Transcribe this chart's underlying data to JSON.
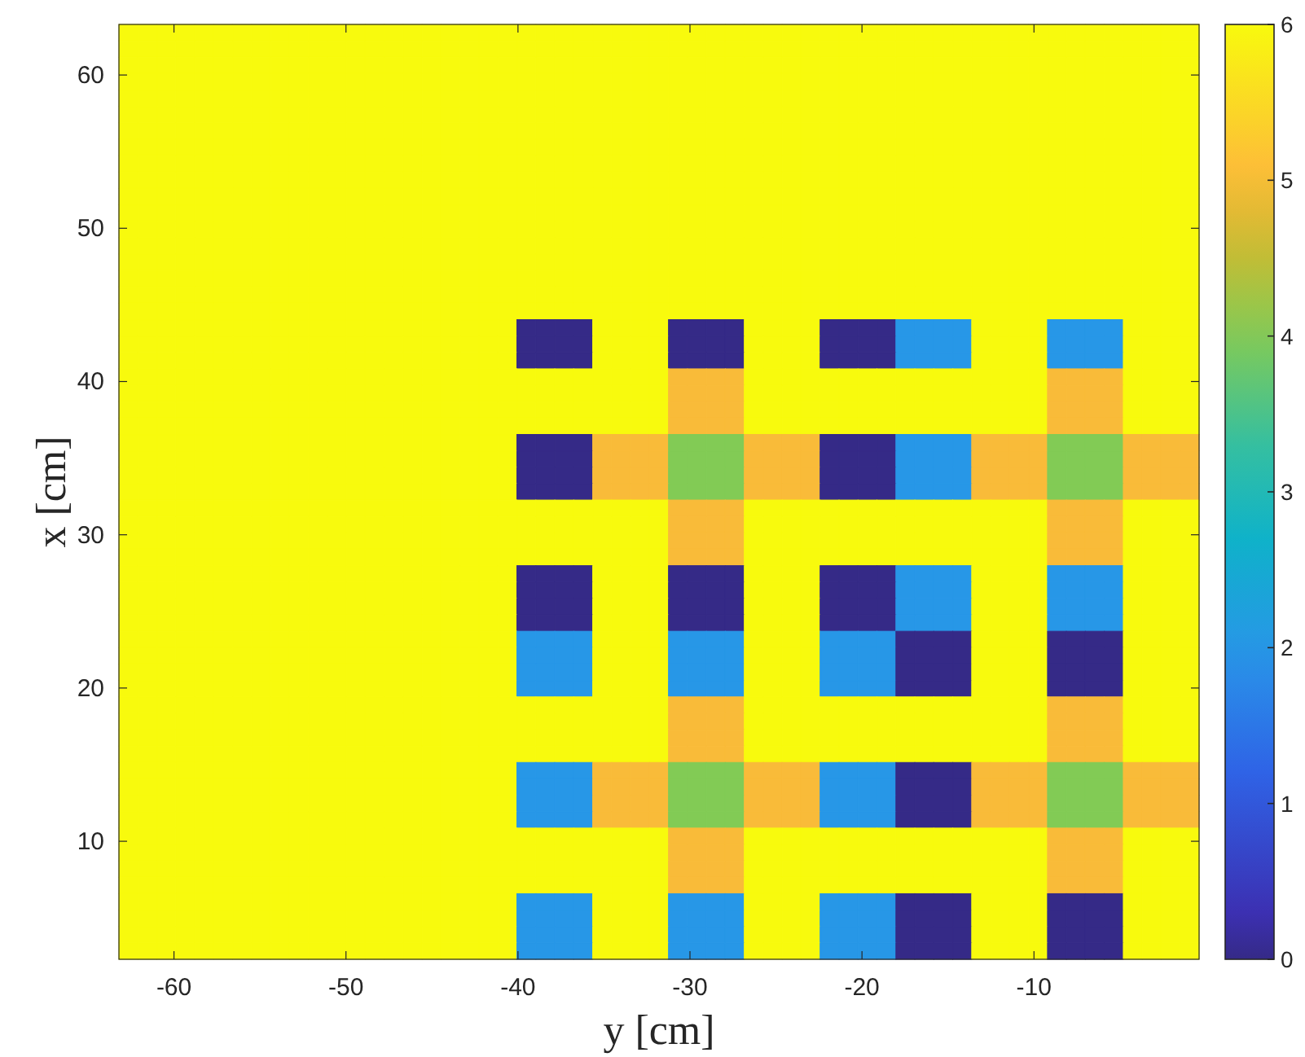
{
  "chart_data": {
    "type": "heatmap",
    "xlabel": "y [cm]",
    "ylabel": "x [cm]",
    "xlim": [
      -63.2,
      -0.4
    ],
    "ylim": [
      2.3,
      63.3
    ],
    "xticks": [
      -60,
      -50,
      -40,
      -30,
      -20,
      -10
    ],
    "yticks": [
      10,
      20,
      30,
      40,
      50,
      60
    ],
    "clim": [
      0,
      6
    ],
    "cticks": [
      0,
      1,
      2,
      3,
      4,
      5,
      6
    ],
    "cells": [
      [
        6,
        6,
        6,
        6,
        6,
        6,
        6,
        6,
        6,
        6,
        6,
        6,
        6,
        6,
        6,
        6,
        6,
        6,
        6,
        6,
        6,
        6,
        6,
        6,
        6,
        6,
        6,
        6,
        6,
        6,
        6,
        6,
        6,
        6,
        6,
        6,
        6,
        6,
        6,
        6,
        6,
        6,
        6,
        6,
        6,
        6,
        6,
        6,
        6,
        6,
        6,
        6,
        6,
        6,
        6,
        6,
        6
      ],
      [
        6,
        6,
        6,
        6,
        6,
        6,
        6,
        6,
        6,
        6,
        6,
        6,
        6,
        6,
        6,
        6,
        6,
        6,
        6,
        6,
        6,
        6,
        6,
        6,
        6,
        6,
        6,
        6,
        6,
        6,
        6,
        6,
        6,
        6,
        6,
        6,
        6,
        6,
        6,
        6,
        6,
        6,
        6,
        6,
        6,
        6,
        6,
        6,
        6,
        6,
        6,
        6,
        6,
        6,
        6,
        6,
        6
      ],
      [
        6,
        6,
        6,
        6,
        6,
        6,
        6,
        6,
        6,
        6,
        6,
        6,
        6,
        6,
        6,
        6,
        6,
        6,
        6,
        6,
        6,
        6,
        6,
        6,
        6,
        6,
        6,
        6,
        6,
        6,
        6,
        6,
        6,
        6,
        6,
        6,
        6,
        6,
        6,
        6,
        6,
        6,
        6,
        6,
        6,
        6,
        6,
        6,
        6,
        6,
        6,
        6,
        6,
        6,
        6,
        6,
        6
      ],
      [
        6,
        6,
        6,
        6,
        6,
        6,
        6,
        6,
        6,
        6,
        6,
        6,
        6,
        6,
        6,
        6,
        6,
        6,
        6,
        6,
        6,
        6,
        6,
        6,
        6,
        6,
        6,
        6,
        6,
        6,
        6,
        6,
        6,
        6,
        6,
        6,
        6,
        6,
        6,
        6,
        6,
        6,
        6,
        6,
        6,
        6,
        6,
        6,
        6,
        6,
        6,
        6,
        6,
        6,
        6,
        6,
        6
      ],
      [
        6,
        6,
        6,
        6,
        6,
        6,
        6,
        6,
        6,
        6,
        6,
        6,
        6,
        6,
        6,
        6,
        6,
        6,
        6,
        6,
        6,
        6,
        6,
        6,
        6,
        6,
        6,
        6,
        6,
        6,
        6,
        6,
        6,
        6,
        6,
        6,
        6,
        6,
        6,
        6,
        6,
        6,
        6,
        6,
        6,
        6,
        6,
        6,
        6,
        6,
        6,
        6,
        6,
        6,
        6,
        6,
        6
      ],
      [
        6,
        6,
        6,
        6,
        6,
        6,
        6,
        6,
        6,
        6,
        6,
        6,
        6,
        6,
        6,
        6,
        6,
        6,
        6,
        6,
        6,
        6,
        6,
        6,
        6,
        6,
        6,
        6,
        6,
        6,
        6,
        6,
        6,
        6,
        6,
        6,
        6,
        6,
        6,
        6,
        6,
        6,
        6,
        6,
        6,
        6,
        6,
        6,
        6,
        6,
        6,
        6,
        6,
        6,
        6,
        6,
        6
      ],
      [
        6,
        6,
        6,
        6,
        6,
        6,
        6,
        6,
        6,
        6,
        6,
        6,
        6,
        6,
        6,
        6,
        6,
        6,
        6,
        6,
        6,
        6,
        6,
        6,
        6,
        6,
        6,
        6,
        6,
        6,
        6,
        6,
        6,
        6,
        6,
        6,
        6,
        6,
        6,
        6,
        6,
        6,
        6,
        6,
        6,
        6,
        6,
        6,
        6,
        6,
        6,
        6,
        6,
        6,
        6,
        6,
        6
      ],
      [
        6,
        6,
        6,
        6,
        6,
        6,
        6,
        6,
        6,
        6,
        6,
        6,
        6,
        6,
        6,
        6,
        6,
        6,
        6,
        6,
        6,
        6,
        6,
        6,
        6,
        6,
        6,
        6,
        6,
        6,
        6,
        6,
        6,
        6,
        6,
        6,
        6,
        6,
        6,
        6,
        6,
        6,
        6,
        6,
        6,
        6,
        6,
        6,
        6,
        6,
        6,
        6,
        6,
        6,
        6,
        6,
        6
      ],
      [
        6,
        6,
        6,
        6,
        6,
        6,
        6,
        6,
        6,
        6,
        6,
        6,
        6,
        6,
        6,
        6,
        6,
        6,
        6,
        6,
        6,
        6,
        6,
        6,
        6,
        6,
        6,
        6,
        6,
        6,
        6,
        6,
        6,
        6,
        6,
        6,
        6,
        6,
        6,
        6,
        6,
        6,
        6,
        6,
        6,
        6,
        6,
        6,
        6,
        6,
        6,
        6,
        6,
        6,
        6,
        6,
        6
      ],
      [
        6,
        6,
        6,
        6,
        6,
        6,
        6,
        6,
        6,
        6,
        6,
        6,
        6,
        6,
        6,
        6,
        6,
        6,
        6,
        6,
        6,
        6,
        6,
        6,
        6,
        6,
        6,
        6,
        6,
        6,
        6,
        6,
        6,
        6,
        6,
        6,
        6,
        6,
        6,
        6,
        6,
        6,
        6,
        6,
        6,
        6,
        6,
        6,
        6,
        6,
        6,
        6,
        6,
        6,
        6,
        6,
        6
      ],
      [
        6,
        6,
        6,
        6,
        6,
        6,
        6,
        6,
        6,
        6,
        6,
        6,
        6,
        6,
        6,
        6,
        6,
        6,
        6,
        6,
        6,
        6,
        6,
        6,
        6,
        6,
        6,
        6,
        6,
        6,
        6,
        6,
        6,
        6,
        6,
        6,
        6,
        6,
        6,
        6,
        6,
        6,
        6,
        6,
        6,
        6,
        6,
        6,
        6,
        6,
        6,
        6,
        6,
        6,
        6,
        6,
        6
      ],
      [
        6,
        6,
        6,
        6,
        6,
        6,
        6,
        6,
        6,
        6,
        6,
        6,
        6,
        6,
        6,
        6,
        6,
        6,
        6,
        6,
        6,
        6,
        6,
        6,
        6,
        6,
        6,
        6,
        6,
        6,
        6,
        6,
        6,
        6,
        6,
        6,
        6,
        6,
        6,
        6,
        6,
        6,
        6,
        6,
        6,
        6,
        6,
        6,
        6,
        6,
        6,
        6,
        6,
        6,
        6,
        6,
        6
      ],
      [
        6,
        6,
        6,
        6,
        6,
        6,
        6,
        6,
        6,
        6,
        6,
        6,
        6,
        6,
        6,
        6,
        6,
        6,
        6,
        6,
        6,
        6,
        6,
        6,
        6,
        6,
        6,
        6,
        6,
        6,
        6,
        6,
        6,
        6,
        6,
        6,
        6,
        6,
        6,
        6,
        6,
        6,
        6,
        6,
        6,
        6,
        6,
        6,
        6,
        6,
        6,
        6,
        6,
        6,
        6,
        6,
        6
      ],
      [
        6,
        6,
        6,
        6,
        6,
        6,
        6,
        6,
        6,
        6,
        6,
        6,
        6,
        6,
        6,
        6,
        6,
        6,
        6,
        6,
        6,
        6,
        6,
        6,
        6,
        6,
        6,
        6,
        6,
        6,
        6,
        6,
        6,
        6,
        6,
        6,
        6,
        6,
        6,
        6,
        6,
        6,
        6,
        6,
        6,
        6,
        6,
        6,
        6,
        6,
        6,
        6,
        6,
        6,
        6,
        6,
        6
      ],
      [
        6,
        6,
        6,
        6,
        6,
        6,
        6,
        6,
        6,
        6,
        6,
        6,
        6,
        6,
        6,
        6,
        6,
        6,
        6,
        6,
        6,
        6,
        6,
        6,
        6,
        6,
        6,
        6,
        6,
        6,
        6,
        6,
        6,
        6,
        6,
        6,
        6,
        6,
        6,
        6,
        6,
        6,
        6,
        6,
        6,
        6,
        6,
        6,
        6,
        6,
        6,
        6,
        6,
        6,
        6,
        6,
        6
      ],
      [
        6,
        6,
        6,
        6,
        6,
        6,
        6,
        6,
        6,
        6,
        6,
        6,
        6,
        6,
        6,
        6,
        6,
        6,
        6,
        6,
        6,
        6,
        6,
        6,
        6,
        6,
        6,
        6,
        6,
        6,
        6,
        6,
        6,
        6,
        6,
        6,
        6,
        6,
        6,
        6,
        6,
        6,
        6,
        6,
        6,
        6,
        6,
        6,
        6,
        6,
        6,
        6,
        6,
        6,
        6,
        6,
        6
      ],
      [
        6,
        6,
        6,
        6,
        6,
        6,
        6,
        6,
        6,
        6,
        6,
        6,
        6,
        6,
        6,
        6,
        6,
        6,
        6,
        6,
        6,
        6,
        6,
        6,
        6,
        6,
        6,
        6,
        6,
        6,
        6,
        6,
        6,
        6,
        6,
        6,
        6,
        6,
        6,
        6,
        6,
        6,
        6,
        6,
        6,
        6,
        6,
        6,
        6,
        6,
        6,
        6,
        6,
        6,
        6,
        6,
        6
      ],
      [
        6,
        6,
        6,
        6,
        6,
        6,
        6,
        6,
        6,
        6,
        6,
        6,
        6,
        6,
        6,
        6,
        6,
        6,
        6,
        6,
        6,
        6,
        6,
        6,
        6,
        6,
        6,
        6,
        6,
        6,
        6,
        6,
        6,
        6,
        6,
        6,
        6,
        6,
        6,
        6,
        6,
        6,
        6,
        6,
        6,
        6,
        6,
        6,
        6,
        6,
        6,
        6,
        6,
        6,
        6,
        6,
        6
      ],
      [
        6,
        6,
        6,
        6,
        6,
        6,
        6,
        6,
        6,
        6,
        6,
        6,
        6,
        6,
        6,
        6,
        6,
        6,
        6,
        6,
        6,
        0,
        0,
        0,
        0,
        6,
        6,
        6,
        6,
        0,
        0,
        0,
        0,
        6,
        6,
        6,
        6,
        0,
        0,
        0,
        0,
        2,
        2,
        2,
        2,
        6,
        6,
        6,
        6,
        2,
        2,
        2,
        2,
        6,
        6,
        6,
        6
      ],
      [
        6,
        6,
        6,
        6,
        6,
        6,
        6,
        6,
        6,
        6,
        6,
        6,
        6,
        6,
        6,
        6,
        6,
        6,
        6,
        6,
        6,
        0,
        0,
        0,
        0,
        6,
        6,
        6,
        6,
        0,
        0,
        0,
        0,
        6,
        6,
        6,
        6,
        0,
        0,
        0,
        0,
        2,
        2,
        2,
        2,
        6,
        6,
        6,
        6,
        2,
        2,
        2,
        2,
        6,
        6,
        6,
        6
      ],
      [
        6,
        6,
        6,
        6,
        6,
        6,
        6,
        6,
        6,
        6,
        6,
        6,
        6,
        6,
        6,
        6,
        6,
        6,
        6,
        6,
        6,
        0,
        0,
        0,
        0,
        6,
        6,
        6,
        6,
        0,
        0,
        0,
        0,
        6,
        6,
        6,
        6,
        0,
        0,
        0,
        0,
        2,
        2,
        2,
        2,
        6,
        6,
        6,
        6,
        2,
        2,
        2,
        2,
        6,
        6,
        6,
        6
      ],
      [
        6,
        6,
        6,
        6,
        6,
        6,
        6,
        6,
        6,
        6,
        6,
        6,
        6,
        6,
        6,
        6,
        6,
        6,
        6,
        6,
        6,
        6,
        6,
        6,
        6,
        6,
        6,
        6,
        6,
        5,
        5,
        5,
        5,
        6,
        6,
        6,
        6,
        6,
        6,
        6,
        6,
        6,
        6,
        6,
        6,
        6,
        6,
        6,
        6,
        5,
        5,
        5,
        5,
        6,
        6,
        6,
        6
      ],
      [
        6,
        6,
        6,
        6,
        6,
        6,
        6,
        6,
        6,
        6,
        6,
        6,
        6,
        6,
        6,
        6,
        6,
        6,
        6,
        6,
        6,
        6,
        6,
        6,
        6,
        6,
        6,
        6,
        6,
        5,
        5,
        5,
        5,
        6,
        6,
        6,
        6,
        6,
        6,
        6,
        6,
        6,
        6,
        6,
        6,
        6,
        6,
        6,
        6,
        5,
        5,
        5,
        5,
        6,
        6,
        6,
        6
      ],
      [
        6,
        6,
        6,
        6,
        6,
        6,
        6,
        6,
        6,
        6,
        6,
        6,
        6,
        6,
        6,
        6,
        6,
        6,
        6,
        6,
        6,
        6,
        6,
        6,
        6,
        6,
        6,
        6,
        6,
        5,
        5,
        5,
        5,
        6,
        6,
        6,
        6,
        6,
        6,
        6,
        6,
        6,
        6,
        6,
        6,
        6,
        6,
        6,
        6,
        5,
        5,
        5,
        5,
        6,
        6,
        6,
        6
      ],
      [
        6,
        6,
        6,
        6,
        6,
        6,
        6,
        6,
        6,
        6,
        6,
        6,
        6,
        6,
        6,
        6,
        6,
        6,
        6,
        6,
        6,
        6,
        6,
        6,
        6,
        6,
        6,
        6,
        6,
        5,
        5,
        5,
        5,
        6,
        6,
        6,
        6,
        6,
        6,
        6,
        6,
        6,
        6,
        6,
        6,
        6,
        6,
        6,
        6,
        5,
        5,
        5,
        5,
        6,
        6,
        6,
        6
      ],
      [
        6,
        6,
        6,
        6,
        6,
        6,
        6,
        6,
        6,
        6,
        6,
        6,
        6,
        6,
        6,
        6,
        6,
        6,
        6,
        6,
        6,
        0,
        0,
        0,
        0,
        5,
        5,
        5,
        5,
        4,
        4,
        4,
        4,
        5,
        5,
        5,
        5,
        0,
        0,
        0,
        0,
        2,
        2,
        2,
        2,
        5,
        5,
        5,
        5,
        4,
        4,
        4,
        4,
        5,
        5,
        5,
        5
      ],
      [
        6,
        6,
        6,
        6,
        6,
        6,
        6,
        6,
        6,
        6,
        6,
        6,
        6,
        6,
        6,
        6,
        6,
        6,
        6,
        6,
        6,
        0,
        0,
        0,
        0,
        5,
        5,
        5,
        5,
        4,
        4,
        4,
        4,
        5,
        5,
        5,
        5,
        0,
        0,
        0,
        0,
        2,
        2,
        2,
        2,
        5,
        5,
        5,
        5,
        4,
        4,
        4,
        4,
        5,
        5,
        5,
        5
      ],
      [
        6,
        6,
        6,
        6,
        6,
        6,
        6,
        6,
        6,
        6,
        6,
        6,
        6,
        6,
        6,
        6,
        6,
        6,
        6,
        6,
        6,
        0,
        0,
        0,
        0,
        5,
        5,
        5,
        5,
        4,
        4,
        4,
        4,
        5,
        5,
        5,
        5,
        0,
        0,
        0,
        0,
        2,
        2,
        2,
        2,
        5,
        5,
        5,
        5,
        4,
        4,
        4,
        4,
        5,
        5,
        5,
        5
      ],
      [
        6,
        6,
        6,
        6,
        6,
        6,
        6,
        6,
        6,
        6,
        6,
        6,
        6,
        6,
        6,
        6,
        6,
        6,
        6,
        6,
        6,
        0,
        0,
        0,
        0,
        5,
        5,
        5,
        5,
        4,
        4,
        4,
        4,
        5,
        5,
        5,
        5,
        0,
        0,
        0,
        0,
        2,
        2,
        2,
        2,
        5,
        5,
        5,
        5,
        4,
        4,
        4,
        4,
        5,
        5,
        5,
        5
      ],
      [
        6,
        6,
        6,
        6,
        6,
        6,
        6,
        6,
        6,
        6,
        6,
        6,
        6,
        6,
        6,
        6,
        6,
        6,
        6,
        6,
        6,
        6,
        6,
        6,
        6,
        6,
        6,
        6,
        6,
        5,
        5,
        5,
        5,
        6,
        6,
        6,
        6,
        6,
        6,
        6,
        6,
        6,
        6,
        6,
        6,
        6,
        6,
        6,
        6,
        5,
        5,
        5,
        5,
        6,
        6,
        6,
        6
      ],
      [
        6,
        6,
        6,
        6,
        6,
        6,
        6,
        6,
        6,
        6,
        6,
        6,
        6,
        6,
        6,
        6,
        6,
        6,
        6,
        6,
        6,
        6,
        6,
        6,
        6,
        6,
        6,
        6,
        6,
        5,
        5,
        5,
        5,
        6,
        6,
        6,
        6,
        6,
        6,
        6,
        6,
        6,
        6,
        6,
        6,
        6,
        6,
        6,
        6,
        5,
        5,
        5,
        5,
        6,
        6,
        6,
        6
      ],
      [
        6,
        6,
        6,
        6,
        6,
        6,
        6,
        6,
        6,
        6,
        6,
        6,
        6,
        6,
        6,
        6,
        6,
        6,
        6,
        6,
        6,
        6,
        6,
        6,
        6,
        6,
        6,
        6,
        6,
        5,
        5,
        5,
        5,
        6,
        6,
        6,
        6,
        6,
        6,
        6,
        6,
        6,
        6,
        6,
        6,
        6,
        6,
        6,
        6,
        5,
        5,
        5,
        5,
        6,
        6,
        6,
        6
      ],
      [
        6,
        6,
        6,
        6,
        6,
        6,
        6,
        6,
        6,
        6,
        6,
        6,
        6,
        6,
        6,
        6,
        6,
        6,
        6,
        6,
        6,
        6,
        6,
        6,
        6,
        6,
        6,
        6,
        6,
        5,
        5,
        5,
        5,
        6,
        6,
        6,
        6,
        6,
        6,
        6,
        6,
        6,
        6,
        6,
        6,
        6,
        6,
        6,
        6,
        5,
        5,
        5,
        5,
        6,
        6,
        6,
        6
      ],
      [
        6,
        6,
        6,
        6,
        6,
        6,
        6,
        6,
        6,
        6,
        6,
        6,
        6,
        6,
        6,
        6,
        6,
        6,
        6,
        6,
        6,
        0,
        0,
        0,
        0,
        6,
        6,
        6,
        6,
        0,
        0,
        0,
        0,
        6,
        6,
        6,
        6,
        0,
        0,
        0,
        0,
        2,
        2,
        2,
        2,
        6,
        6,
        6,
        6,
        2,
        2,
        2,
        2,
        6,
        6,
        6,
        6
      ],
      [
        6,
        6,
        6,
        6,
        6,
        6,
        6,
        6,
        6,
        6,
        6,
        6,
        6,
        6,
        6,
        6,
        6,
        6,
        6,
        6,
        6,
        0,
        0,
        0,
        0,
        6,
        6,
        6,
        6,
        0,
        0,
        0,
        0,
        6,
        6,
        6,
        6,
        0,
        0,
        0,
        0,
        2,
        2,
        2,
        2,
        6,
        6,
        6,
        6,
        2,
        2,
        2,
        2,
        6,
        6,
        6,
        6
      ],
      [
        6,
        6,
        6,
        6,
        6,
        6,
        6,
        6,
        6,
        6,
        6,
        6,
        6,
        6,
        6,
        6,
        6,
        6,
        6,
        6,
        6,
        0,
        0,
        0,
        0,
        6,
        6,
        6,
        6,
        0,
        0,
        0,
        0,
        6,
        6,
        6,
        6,
        0,
        0,
        0,
        0,
        2,
        2,
        2,
        2,
        6,
        6,
        6,
        6,
        2,
        2,
        2,
        2,
        6,
        6,
        6,
        6
      ],
      [
        6,
        6,
        6,
        6,
        6,
        6,
        6,
        6,
        6,
        6,
        6,
        6,
        6,
        6,
        6,
        6,
        6,
        6,
        6,
        6,
        6,
        0,
        0,
        0,
        0,
        6,
        6,
        6,
        6,
        0,
        0,
        0,
        0,
        6,
        6,
        6,
        6,
        0,
        0,
        0,
        0,
        2,
        2,
        2,
        2,
        6,
        6,
        6,
        6,
        2,
        2,
        2,
        2,
        6,
        6,
        6,
        6
      ],
      [
        6,
        6,
        6,
        6,
        6,
        6,
        6,
        6,
        6,
        6,
        6,
        6,
        6,
        6,
        6,
        6,
        6,
        6,
        6,
        6,
        6,
        2,
        2,
        2,
        2,
        6,
        6,
        6,
        6,
        2,
        2,
        2,
        2,
        6,
        6,
        6,
        6,
        2,
        2,
        2,
        2,
        0,
        0,
        0,
        0,
        6,
        6,
        6,
        6,
        0,
        0,
        0,
        0,
        6,
        6,
        6,
        6
      ],
      [
        6,
        6,
        6,
        6,
        6,
        6,
        6,
        6,
        6,
        6,
        6,
        6,
        6,
        6,
        6,
        6,
        6,
        6,
        6,
        6,
        6,
        2,
        2,
        2,
        2,
        6,
        6,
        6,
        6,
        2,
        2,
        2,
        2,
        6,
        6,
        6,
        6,
        2,
        2,
        2,
        2,
        0,
        0,
        0,
        0,
        6,
        6,
        6,
        6,
        0,
        0,
        0,
        0,
        6,
        6,
        6,
        6
      ],
      [
        6,
        6,
        6,
        6,
        6,
        6,
        6,
        6,
        6,
        6,
        6,
        6,
        6,
        6,
        6,
        6,
        6,
        6,
        6,
        6,
        6,
        2,
        2,
        2,
        2,
        6,
        6,
        6,
        6,
        2,
        2,
        2,
        2,
        6,
        6,
        6,
        6,
        2,
        2,
        2,
        2,
        0,
        0,
        0,
        0,
        6,
        6,
        6,
        6,
        0,
        0,
        0,
        0,
        6,
        6,
        6,
        6
      ],
      [
        6,
        6,
        6,
        6,
        6,
        6,
        6,
        6,
        6,
        6,
        6,
        6,
        6,
        6,
        6,
        6,
        6,
        6,
        6,
        6,
        6,
        2,
        2,
        2,
        2,
        6,
        6,
        6,
        6,
        2,
        2,
        2,
        2,
        6,
        6,
        6,
        6,
        2,
        2,
        2,
        2,
        0,
        0,
        0,
        0,
        6,
        6,
        6,
        6,
        0,
        0,
        0,
        0,
        6,
        6,
        6,
        6
      ],
      [
        6,
        6,
        6,
        6,
        6,
        6,
        6,
        6,
        6,
        6,
        6,
        6,
        6,
        6,
        6,
        6,
        6,
        6,
        6,
        6,
        6,
        6,
        6,
        6,
        6,
        6,
        6,
        6,
        6,
        5,
        5,
        5,
        5,
        6,
        6,
        6,
        6,
        6,
        6,
        6,
        6,
        6,
        6,
        6,
        6,
        6,
        6,
        6,
        6,
        5,
        5,
        5,
        5,
        6,
        6,
        6,
        6
      ],
      [
        6,
        6,
        6,
        6,
        6,
        6,
        6,
        6,
        6,
        6,
        6,
        6,
        6,
        6,
        6,
        6,
        6,
        6,
        6,
        6,
        6,
        6,
        6,
        6,
        6,
        6,
        6,
        6,
        6,
        5,
        5,
        5,
        5,
        6,
        6,
        6,
        6,
        6,
        6,
        6,
        6,
        6,
        6,
        6,
        6,
        6,
        6,
        6,
        6,
        5,
        5,
        5,
        5,
        6,
        6,
        6,
        6
      ],
      [
        6,
        6,
        6,
        6,
        6,
        6,
        6,
        6,
        6,
        6,
        6,
        6,
        6,
        6,
        6,
        6,
        6,
        6,
        6,
        6,
        6,
        6,
        6,
        6,
        6,
        6,
        6,
        6,
        6,
        5,
        5,
        5,
        5,
        6,
        6,
        6,
        6,
        6,
        6,
        6,
        6,
        6,
        6,
        6,
        6,
        6,
        6,
        6,
        6,
        5,
        5,
        5,
        5,
        6,
        6,
        6,
        6
      ],
      [
        6,
        6,
        6,
        6,
        6,
        6,
        6,
        6,
        6,
        6,
        6,
        6,
        6,
        6,
        6,
        6,
        6,
        6,
        6,
        6,
        6,
        6,
        6,
        6,
        6,
        6,
        6,
        6,
        6,
        5,
        5,
        5,
        5,
        6,
        6,
        6,
        6,
        6,
        6,
        6,
        6,
        6,
        6,
        6,
        6,
        6,
        6,
        6,
        6,
        5,
        5,
        5,
        5,
        6,
        6,
        6,
        6
      ],
      [
        6,
        6,
        6,
        6,
        6,
        6,
        6,
        6,
        6,
        6,
        6,
        6,
        6,
        6,
        6,
        6,
        6,
        6,
        6,
        6,
        6,
        2,
        2,
        2,
        2,
        5,
        5,
        5,
        5,
        4,
        4,
        4,
        4,
        5,
        5,
        5,
        5,
        2,
        2,
        2,
        2,
        0,
        0,
        0,
        0,
        5,
        5,
        5,
        5,
        4,
        4,
        4,
        4,
        5,
        5,
        5,
        5
      ],
      [
        6,
        6,
        6,
        6,
        6,
        6,
        6,
        6,
        6,
        6,
        6,
        6,
        6,
        6,
        6,
        6,
        6,
        6,
        6,
        6,
        6,
        2,
        2,
        2,
        2,
        5,
        5,
        5,
        5,
        4,
        4,
        4,
        4,
        5,
        5,
        5,
        5,
        2,
        2,
        2,
        2,
        0,
        0,
        0,
        0,
        5,
        5,
        5,
        5,
        4,
        4,
        4,
        4,
        5,
        5,
        5,
        5
      ],
      [
        6,
        6,
        6,
        6,
        6,
        6,
        6,
        6,
        6,
        6,
        6,
        6,
        6,
        6,
        6,
        6,
        6,
        6,
        6,
        6,
        6,
        2,
        2,
        2,
        2,
        5,
        5,
        5,
        5,
        4,
        4,
        4,
        4,
        5,
        5,
        5,
        5,
        2,
        2,
        2,
        2,
        0,
        0,
        0,
        0,
        5,
        5,
        5,
        5,
        4,
        4,
        4,
        4,
        5,
        5,
        5,
        5
      ],
      [
        6,
        6,
        6,
        6,
        6,
        6,
        6,
        6,
        6,
        6,
        6,
        6,
        6,
        6,
        6,
        6,
        6,
        6,
        6,
        6,
        6,
        2,
        2,
        2,
        2,
        5,
        5,
        5,
        5,
        4,
        4,
        4,
        4,
        5,
        5,
        5,
        5,
        2,
        2,
        2,
        2,
        0,
        0,
        0,
        0,
        5,
        5,
        5,
        5,
        4,
        4,
        4,
        4,
        5,
        5,
        5,
        5
      ],
      [
        6,
        6,
        6,
        6,
        6,
        6,
        6,
        6,
        6,
        6,
        6,
        6,
        6,
        6,
        6,
        6,
        6,
        6,
        6,
        6,
        6,
        6,
        6,
        6,
        6,
        6,
        6,
        6,
        6,
        5,
        5,
        5,
        5,
        6,
        6,
        6,
        6,
        6,
        6,
        6,
        6,
        6,
        6,
        6,
        6,
        6,
        6,
        6,
        6,
        5,
        5,
        5,
        5,
        6,
        6,
        6,
        6
      ],
      [
        6,
        6,
        6,
        6,
        6,
        6,
        6,
        6,
        6,
        6,
        6,
        6,
        6,
        6,
        6,
        6,
        6,
        6,
        6,
        6,
        6,
        6,
        6,
        6,
        6,
        6,
        6,
        6,
        6,
        5,
        5,
        5,
        5,
        6,
        6,
        6,
        6,
        6,
        6,
        6,
        6,
        6,
        6,
        6,
        6,
        6,
        6,
        6,
        6,
        5,
        5,
        5,
        5,
        6,
        6,
        6,
        6
      ],
      [
        6,
        6,
        6,
        6,
        6,
        6,
        6,
        6,
        6,
        6,
        6,
        6,
        6,
        6,
        6,
        6,
        6,
        6,
        6,
        6,
        6,
        6,
        6,
        6,
        6,
        6,
        6,
        6,
        6,
        5,
        5,
        5,
        5,
        6,
        6,
        6,
        6,
        6,
        6,
        6,
        6,
        6,
        6,
        6,
        6,
        6,
        6,
        6,
        6,
        5,
        5,
        5,
        5,
        6,
        6,
        6,
        6
      ],
      [
        6,
        6,
        6,
        6,
        6,
        6,
        6,
        6,
        6,
        6,
        6,
        6,
        6,
        6,
        6,
        6,
        6,
        6,
        6,
        6,
        6,
        6,
        6,
        6,
        6,
        6,
        6,
        6,
        6,
        5,
        5,
        5,
        5,
        6,
        6,
        6,
        6,
        6,
        6,
        6,
        6,
        6,
        6,
        6,
        6,
        6,
        6,
        6,
        6,
        5,
        5,
        5,
        5,
        6,
        6,
        6,
        6
      ],
      [
        6,
        6,
        6,
        6,
        6,
        6,
        6,
        6,
        6,
        6,
        6,
        6,
        6,
        6,
        6,
        6,
        6,
        6,
        6,
        6,
        6,
        2,
        2,
        2,
        2,
        6,
        6,
        6,
        6,
        2,
        2,
        2,
        2,
        6,
        6,
        6,
        6,
        2,
        2,
        2,
        2,
        0,
        0,
        0,
        0,
        6,
        6,
        6,
        6,
        0,
        0,
        0,
        0,
        6,
        6,
        6,
        6
      ],
      [
        6,
        6,
        6,
        6,
        6,
        6,
        6,
        6,
        6,
        6,
        6,
        6,
        6,
        6,
        6,
        6,
        6,
        6,
        6,
        6,
        6,
        2,
        2,
        2,
        2,
        6,
        6,
        6,
        6,
        2,
        2,
        2,
        2,
        6,
        6,
        6,
        6,
        2,
        2,
        2,
        2,
        0,
        0,
        0,
        0,
        6,
        6,
        6,
        6,
        0,
        0,
        0,
        0,
        6,
        6,
        6,
        6
      ],
      [
        6,
        6,
        6,
        6,
        6,
        6,
        6,
        6,
        6,
        6,
        6,
        6,
        6,
        6,
        6,
        6,
        6,
        6,
        6,
        6,
        6,
        2,
        2,
        2,
        2,
        6,
        6,
        6,
        6,
        2,
        2,
        2,
        2,
        6,
        6,
        6,
        6,
        2,
        2,
        2,
        2,
        0,
        0,
        0,
        0,
        6,
        6,
        6,
        6,
        0,
        0,
        0,
        0,
        6,
        6,
        6,
        6
      ],
      [
        6,
        6,
        6,
        6,
        6,
        6,
        6,
        6,
        6,
        6,
        6,
        6,
        6,
        6,
        6,
        6,
        6,
        6,
        6,
        6,
        6,
        2,
        2,
        2,
        2,
        6,
        6,
        6,
        6,
        2,
        2,
        2,
        2,
        6,
        6,
        6,
        6,
        2,
        2,
        2,
        2,
        0,
        0,
        0,
        0,
        6,
        6,
        6,
        6,
        0,
        0,
        0,
        0,
        6,
        6,
        6,
        6
      ]
    ]
  }
}
